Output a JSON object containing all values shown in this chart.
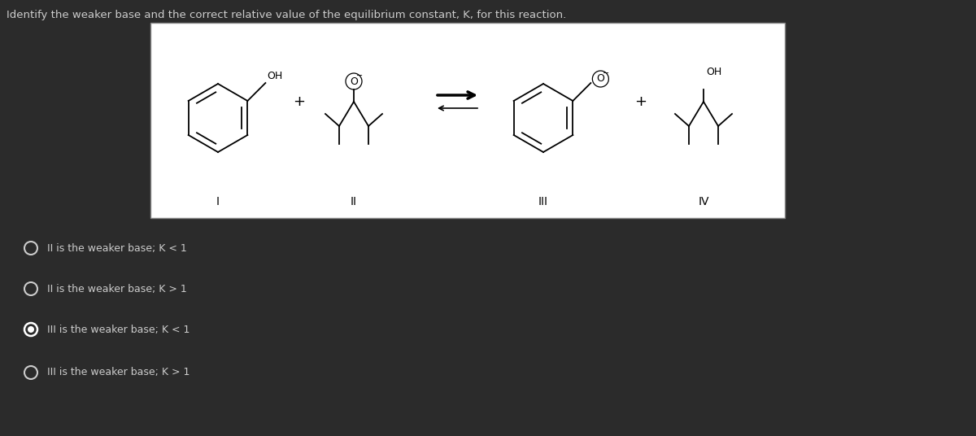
{
  "background_color": "#2b2b2b",
  "box_bg": "#ffffff",
  "title": "Identify the weaker base and the correct relative value of the equilibrium constant, K, for this reaction.",
  "title_color": "#cccccc",
  "title_fontsize": 9.5,
  "options": [
    "II is the weaker base; K < 1",
    "II is the weaker base; K > 1",
    "III is the weaker base; K < 1",
    "III is the weaker base; K > 1"
  ],
  "selected_option": 2,
  "option_text_color": "#cccccc",
  "option_fontsize": 9,
  "radio_color": "#cccccc",
  "radio_selected_fill": "#ffffff",
  "roman_labels": [
    "I",
    "II",
    "III",
    "IV"
  ],
  "label_fontsize": 10
}
